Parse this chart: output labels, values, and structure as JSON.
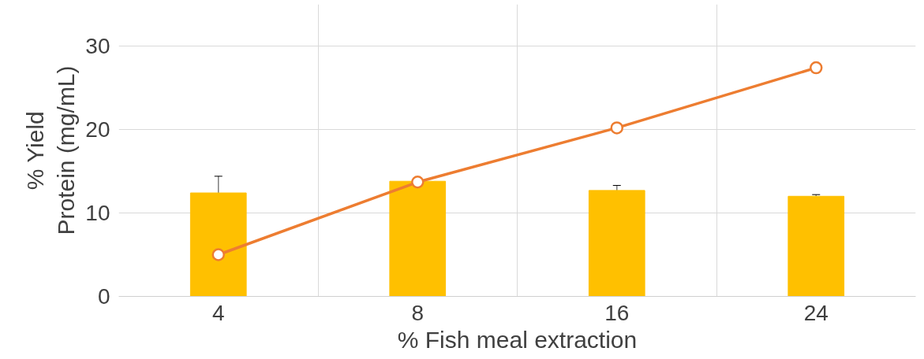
{
  "chart_data": {
    "type": "bar",
    "xlabel": "% Fish meal extraction",
    "ylabel": "% Yield\nProtein (mg/mL)",
    "categories": [
      "4",
      "8",
      "16",
      "24"
    ],
    "series": [
      {
        "color": "#ffc000",
        "values": [
          12.4,
          13.8,
          12.7,
          12.0
        ],
        "errors": [
          2.0,
          null,
          0.6,
          0.2
        ]
      },
      {
        "type": "line",
        "color": "#ed7d31",
        "values": [
          5.0,
          13.7,
          20.2,
          27.4
        ],
        "marker": "circle"
      }
    ],
    "ylim": [
      0,
      35
    ],
    "yticks": [
      0,
      10,
      20,
      30
    ],
    "grid": true
  }
}
